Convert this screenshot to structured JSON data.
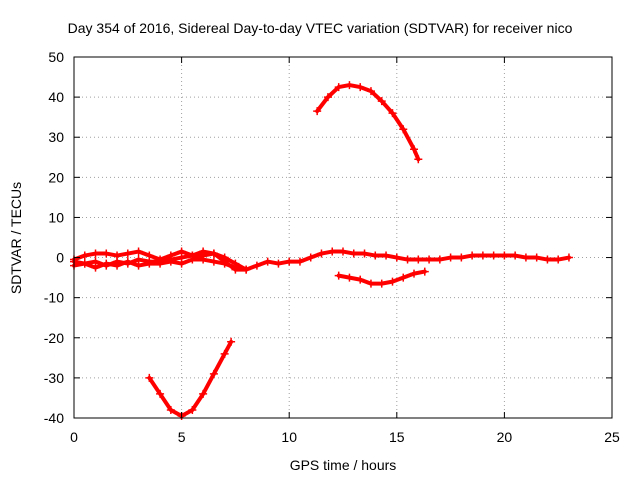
{
  "chart_data": {
    "type": "scatter",
    "title": "Day 354 of 2016, Sidereal Day-to-day VTEC variation (SDTVAR) for receiver nico",
    "xlabel": "GPS time / hours",
    "ylabel": "SDTVAR / TECUs",
    "xlim": [
      0,
      25
    ],
    "ylim": [
      -40,
      50
    ],
    "xticks": [
      0,
      5,
      10,
      15,
      20,
      25
    ],
    "yticks": [
      -40,
      -30,
      -20,
      -10,
      0,
      10,
      20,
      30,
      40,
      50
    ],
    "grid": true,
    "point_style": "plus",
    "series_color": "#ff0000",
    "series": [
      {
        "name": "main-track-a",
        "x": [
          0,
          0.5,
          1,
          1.5,
          2,
          2.5,
          3,
          3.5,
          4,
          4.5,
          5,
          5.5,
          6,
          6.5,
          7,
          7.5,
          8,
          8.5,
          9,
          9.5,
          10,
          10.5,
          11,
          11.5,
          12,
          12.5,
          13,
          13.5,
          14,
          14.5,
          15,
          15.5,
          16,
          16.5,
          17,
          17.5,
          18,
          18.5,
          19,
          19.5,
          20,
          20.5,
          21,
          21.5,
          22,
          22.5,
          23
        ],
        "y": [
          -1,
          -1.5,
          -1,
          -2,
          -1,
          -1.5,
          -0.5,
          -1,
          -1,
          -0.5,
          0,
          0.5,
          0.5,
          1,
          -1,
          -3,
          -3,
          -2,
          -1,
          -1.5,
          -1,
          -1,
          0,
          1,
          1.5,
          1.5,
          1,
          1,
          0.5,
          0.5,
          0,
          -0.5,
          -0.5,
          -0.5,
          -0.5,
          0,
          0,
          0.5,
          0.5,
          0.5,
          0.5,
          0.5,
          0,
          0,
          -0.5,
          -0.5,
          0
        ]
      },
      {
        "name": "main-track-b",
        "x": [
          0,
          0.5,
          1,
          1.5,
          2,
          2.5,
          3,
          3.5,
          4,
          4.5,
          5,
          5.5,
          6,
          6.5,
          7,
          7.5,
          8
        ],
        "y": [
          -0.5,
          0.5,
          1,
          1,
          0.5,
          1,
          1.5,
          0.5,
          -0.5,
          0.5,
          1.5,
          0.5,
          1.5,
          1,
          0,
          -1.5,
          -3
        ]
      },
      {
        "name": "main-track-c",
        "x": [
          0,
          0.5,
          1,
          1.5,
          2,
          2.5,
          3,
          3.5,
          4,
          4.5,
          5,
          5.5,
          6,
          6.5,
          7,
          7.5
        ],
        "y": [
          -2,
          -1.5,
          -2.5,
          -1.5,
          -2,
          -1,
          -2,
          -1.5,
          -1.5,
          -1,
          -1.5,
          -0.5,
          -0.5,
          -1,
          -1.5,
          -2.5
        ]
      },
      {
        "name": "lower-dip",
        "x": [
          3.5,
          4,
          4.5,
          5,
          5.5,
          6,
          6.5,
          7,
          7.3
        ],
        "y": [
          -30,
          -34,
          -38,
          -39.5,
          -38,
          -34,
          -29,
          -24,
          -21
        ]
      },
      {
        "name": "upper-arc",
        "x": [
          11.3,
          11.8,
          12.3,
          12.8,
          13.3,
          13.8,
          14.3,
          14.8,
          15.3,
          15.8,
          16.0
        ],
        "y": [
          36.5,
          40,
          42.5,
          43,
          42.5,
          41.5,
          39,
          36,
          32,
          27,
          24.5
        ]
      },
      {
        "name": "lower-arc",
        "x": [
          12.3,
          12.8,
          13.3,
          13.8,
          14.3,
          14.8,
          15.3,
          15.8,
          16.3
        ],
        "y": [
          -4.5,
          -5,
          -5.5,
          -6.5,
          -6.5,
          -6,
          -5,
          -4,
          -3.5
        ]
      }
    ]
  }
}
